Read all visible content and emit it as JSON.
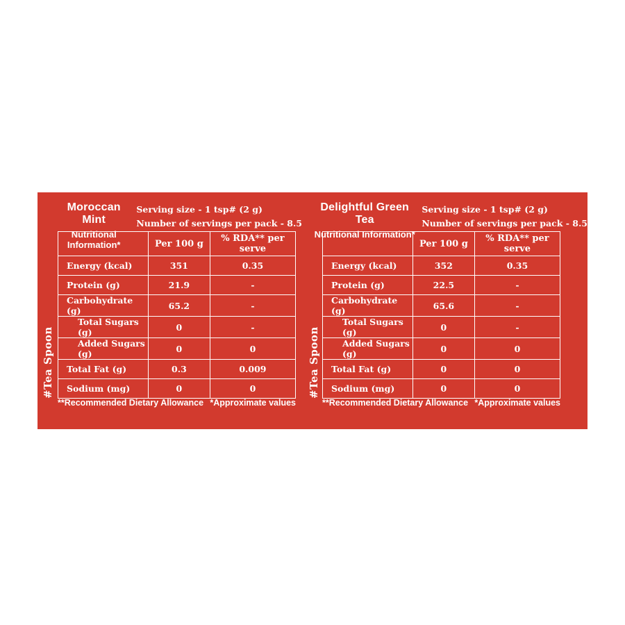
{
  "colors": {
    "panel_bg": "#d23a2e",
    "text": "#ffffff",
    "border": "#ffffff"
  },
  "tables": [
    {
      "title": "Moroccan Mint",
      "subtitle": "Nutritional Information*",
      "serving1": "Serving size - 1 tsp# (2 g)",
      "serving2": "Number of servings per pack - 8.5",
      "col_label": "",
      "col_per100": "Per 100 g",
      "col_rda": "% RDA** per serve",
      "rows": [
        {
          "label": "Energy (kcal)",
          "per100": "351",
          "rda": "0.35"
        },
        {
          "label": "Protein (g)",
          "per100": "21.9",
          "rda": "-"
        },
        {
          "label": "Carbohydrate (g)",
          "per100": "65.2",
          "rda": "-"
        },
        {
          "label": "Total Sugars (g)",
          "per100": "0",
          "rda": "-"
        },
        {
          "label": "Added Sugars (g)",
          "per100": "0",
          "rda": "0"
        },
        {
          "label": "Total Fat (g)",
          "per100": "0.3",
          "rda": "0.009"
        },
        {
          "label": "Sodium (mg)",
          "per100": "0",
          "rda": "0"
        }
      ],
      "note_left": "**Recommended Dietary Allowance",
      "note_right": "*Approximate values",
      "side_label": "#Tea Spoon"
    },
    {
      "title": "Delightful Green Tea",
      "subtitle": "Nutritional Information*",
      "serving1": "Serving size - 1 tsp# (2 g)",
      "serving2": "Number of servings per pack - 8.5",
      "col_label": "",
      "col_per100": "Per 100 g",
      "col_rda": "% RDA** per serve",
      "rows": [
        {
          "label": "Energy (kcal)",
          "per100": "352",
          "rda": "0.35"
        },
        {
          "label": "Protein (g)",
          "per100": "22.5",
          "rda": "-"
        },
        {
          "label": "Carbohydrate (g)",
          "per100": "65.6",
          "rda": "-"
        },
        {
          "label": "Total Sugars (g)",
          "per100": "0",
          "rda": "-"
        },
        {
          "label": "Added Sugars (g)",
          "per100": "0",
          "rda": "0"
        },
        {
          "label": "Total Fat (g)",
          "per100": "0",
          "rda": "0"
        },
        {
          "label": "Sodium (mg)",
          "per100": "0",
          "rda": "0"
        }
      ],
      "note_left": "**Recommended Dietary Allowance",
      "note_right": "*Approximate values",
      "side_label": "#Tea Spoon"
    }
  ]
}
